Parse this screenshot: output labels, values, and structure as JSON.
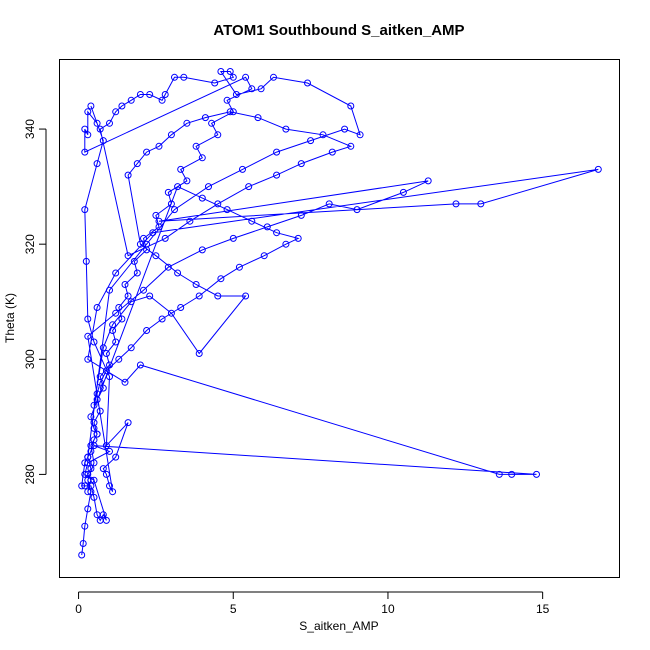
{
  "chart_data": {
    "type": "line",
    "title": "ATOM1 Southbound S_aitken_AMP",
    "xlabel": "S_aitken_AMP",
    "ylabel": "Theta (K)",
    "xlim": [
      -0.6,
      17.5
    ],
    "ylim": [
      262,
      352
    ],
    "x_ticks": [
      0,
      5,
      10,
      15
    ],
    "y_ticks": [
      280,
      300,
      320,
      340
    ],
    "x_tick_labels": [
      "0",
      "5",
      "10",
      "15"
    ],
    "y_tick_labels": [
      "280",
      "300",
      "320",
      "340"
    ],
    "grid": false,
    "legend": "none",
    "series_color": "#0000ff",
    "markers": "open-circle",
    "series": [
      {
        "points": [
          [
            0.1,
            266
          ],
          [
            0.15,
            268
          ],
          [
            0.2,
            271
          ],
          [
            0.3,
            274
          ],
          [
            0.4,
            277
          ],
          [
            0.3,
            279
          ],
          [
            0.5,
            282
          ],
          [
            0.4,
            285
          ],
          [
            0.6,
            287
          ],
          [
            0.5,
            289
          ],
          [
            0.7,
            291
          ],
          [
            0.6,
            293
          ],
          [
            0.8,
            295
          ],
          [
            0.7,
            297
          ],
          [
            1.0,
            299
          ],
          [
            0.9,
            301
          ],
          [
            1.2,
            303
          ],
          [
            1.1,
            305
          ],
          [
            1.4,
            307
          ],
          [
            1.3,
            309
          ],
          [
            1.6,
            311
          ],
          [
            1.5,
            313
          ],
          [
            1.9,
            315
          ],
          [
            1.8,
            317
          ],
          [
            2.2,
            319
          ],
          [
            2.1,
            321
          ],
          [
            2.6,
            323
          ],
          [
            2.5,
            325
          ],
          [
            3.0,
            327
          ],
          [
            2.9,
            329
          ],
          [
            3.5,
            331
          ],
          [
            3.3,
            333
          ],
          [
            4.0,
            335
          ],
          [
            3.8,
            337
          ],
          [
            4.5,
            339
          ],
          [
            4.3,
            341
          ],
          [
            5.0,
            343
          ],
          [
            4.8,
            345
          ],
          [
            5.6,
            347
          ],
          [
            5.4,
            349
          ],
          [
            0.2,
            336
          ],
          [
            0.2,
            340
          ],
          [
            0.3,
            339
          ],
          [
            0.3,
            343
          ],
          [
            0.6,
            341
          ],
          [
            0.4,
            344
          ],
          [
            0.8,
            338
          ],
          [
            0.6,
            334
          ],
          [
            0.2,
            326
          ],
          [
            0.25,
            317
          ],
          [
            0.3,
            307
          ],
          [
            0.5,
            303
          ],
          [
            1.0,
            297
          ],
          [
            0.9,
            285
          ],
          [
            1.6,
            289
          ],
          [
            1.2,
            283
          ],
          [
            0.8,
            281
          ],
          [
            0.9,
            280
          ],
          [
            1.0,
            278
          ],
          [
            1.1,
            277
          ],
          [
            0.3,
            304
          ],
          [
            1.2,
            308
          ],
          [
            2.1,
            312
          ],
          [
            2.9,
            316
          ],
          [
            4.0,
            319
          ],
          [
            5.0,
            321
          ],
          [
            6.1,
            323
          ],
          [
            7.2,
            325
          ],
          [
            8.1,
            327
          ],
          [
            9.0,
            326
          ],
          [
            10.5,
            329
          ],
          [
            11.3,
            331
          ],
          [
            2.6,
            324
          ],
          [
            12.2,
            327
          ],
          [
            13.0,
            327
          ],
          [
            16.8,
            333
          ],
          [
            2.4,
            322
          ],
          [
            1.2,
            315
          ],
          [
            0.6,
            309
          ],
          [
            0.3,
            300
          ],
          [
            1.5,
            296
          ],
          [
            2.0,
            299
          ],
          [
            13.6,
            280
          ],
          [
            14.0,
            280
          ],
          [
            14.8,
            280
          ],
          [
            0.5,
            285
          ],
          [
            1.0,
            284
          ],
          [
            0.3,
            282
          ],
          [
            0.2,
            280
          ],
          [
            0.5,
            279
          ],
          [
            0.9,
            272
          ],
          [
            0.8,
            273
          ],
          [
            0.7,
            272
          ],
          [
            0.6,
            273
          ],
          [
            0.5,
            276
          ],
          [
            0.4,
            278
          ],
          [
            0.2,
            278
          ],
          [
            0.1,
            278
          ],
          [
            0.2,
            282
          ],
          [
            0.3,
            283
          ],
          [
            1.0,
            312
          ],
          [
            2.2,
            320
          ],
          [
            3.1,
            326
          ],
          [
            4.2,
            330
          ],
          [
            5.3,
            333
          ],
          [
            6.4,
            336
          ],
          [
            7.5,
            338
          ],
          [
            8.6,
            340
          ],
          [
            9.1,
            339
          ],
          [
            8.8,
            344
          ],
          [
            7.4,
            348
          ],
          [
            6.3,
            349
          ],
          [
            5.9,
            347
          ],
          [
            5.1,
            346
          ],
          [
            4.6,
            350
          ],
          [
            4.9,
            350
          ],
          [
            5.0,
            349
          ],
          [
            4.4,
            348
          ],
          [
            3.4,
            349
          ],
          [
            3.1,
            349
          ],
          [
            2.8,
            346
          ],
          [
            2.7,
            345
          ],
          [
            2.3,
            346
          ],
          [
            2.0,
            346
          ],
          [
            1.7,
            345
          ],
          [
            1.4,
            344
          ],
          [
            1.2,
            343
          ],
          [
            1.0,
            341
          ],
          [
            0.7,
            340
          ],
          [
            1.6,
            318
          ],
          [
            2.8,
            321
          ],
          [
            3.6,
            324
          ],
          [
            4.5,
            327
          ],
          [
            5.5,
            330
          ],
          [
            6.4,
            332
          ],
          [
            7.2,
            334
          ],
          [
            8.2,
            336
          ],
          [
            8.8,
            337
          ],
          [
            7.9,
            339
          ],
          [
            6.7,
            340
          ],
          [
            5.8,
            342
          ],
          [
            4.9,
            343
          ],
          [
            4.1,
            342
          ],
          [
            3.5,
            341
          ],
          [
            3.0,
            339
          ],
          [
            2.6,
            337
          ],
          [
            2.2,
            336
          ],
          [
            1.9,
            334
          ],
          [
            1.6,
            332
          ],
          [
            2.0,
            320
          ],
          [
            2.5,
            318
          ],
          [
            3.2,
            315
          ],
          [
            3.8,
            313
          ],
          [
            4.5,
            311
          ],
          [
            5.4,
            311
          ],
          [
            3.9,
            301
          ],
          [
            3.0,
            308
          ],
          [
            2.3,
            311
          ],
          [
            1.7,
            310
          ],
          [
            1.1,
            306
          ],
          [
            0.8,
            302
          ],
          [
            0.5,
            292
          ],
          [
            0.6,
            294
          ],
          [
            0.7,
            296
          ],
          [
            0.9,
            298
          ],
          [
            1.3,
            300
          ],
          [
            1.7,
            302
          ],
          [
            2.2,
            305
          ],
          [
            2.7,
            307
          ],
          [
            3.3,
            309
          ],
          [
            3.9,
            311
          ],
          [
            4.6,
            314
          ],
          [
            5.2,
            316
          ],
          [
            6.0,
            318
          ],
          [
            6.7,
            320
          ],
          [
            7.1,
            321
          ],
          [
            6.4,
            322
          ],
          [
            5.6,
            324
          ],
          [
            4.8,
            326
          ],
          [
            4.0,
            328
          ],
          [
            3.2,
            330
          ],
          [
            0.4,
            290
          ],
          [
            0.5,
            288
          ],
          [
            0.6,
            287
          ],
          [
            0.5,
            286
          ],
          [
            0.4,
            284
          ],
          [
            0.3,
            283
          ],
          [
            0.4,
            281
          ],
          [
            0.3,
            280
          ],
          [
            0.4,
            279
          ],
          [
            0.3,
            277
          ]
        ]
      }
    ]
  }
}
